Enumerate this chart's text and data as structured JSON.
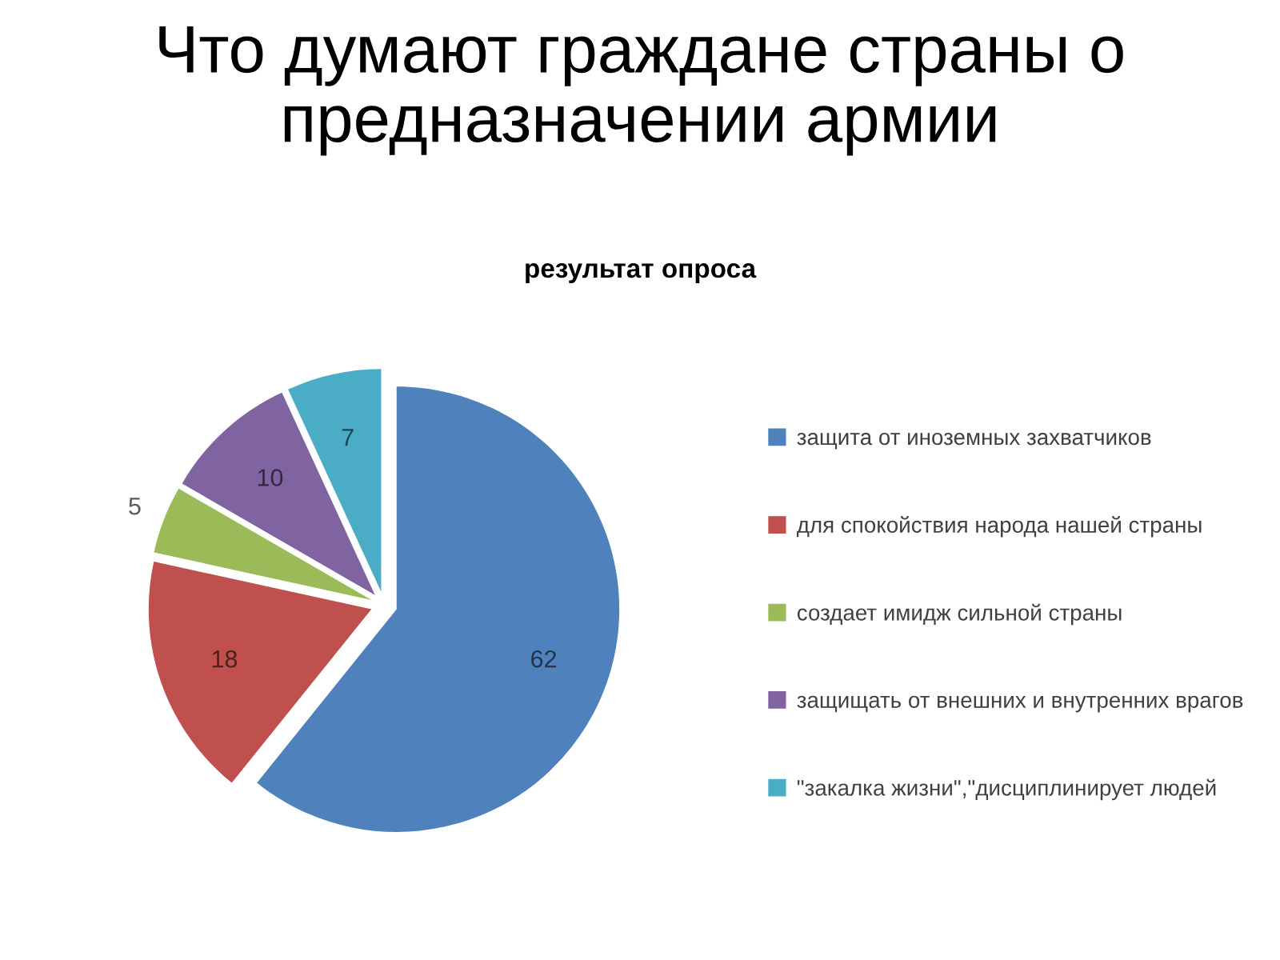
{
  "chart_data": {
    "type": "pie",
    "title": "Что думают граждане страны о\nпредназначении армии",
    "subtitle": "результат опроса",
    "categories": [
      "защита от иноземных захватчиков",
      "для спокойствия народа нашей страны",
      "создает имидж сильной страны",
      "защищать от внешних и внутренних врагов",
      "\"закалка жизни\",\"дисциплинирует людей"
    ],
    "values": [
      62,
      18,
      5,
      10,
      7
    ],
    "colors": [
      "#4f81bd",
      "#c0504d",
      "#9bbb59",
      "#8064a2",
      "#4bacc6"
    ],
    "data_labels": true,
    "legend": "right"
  }
}
